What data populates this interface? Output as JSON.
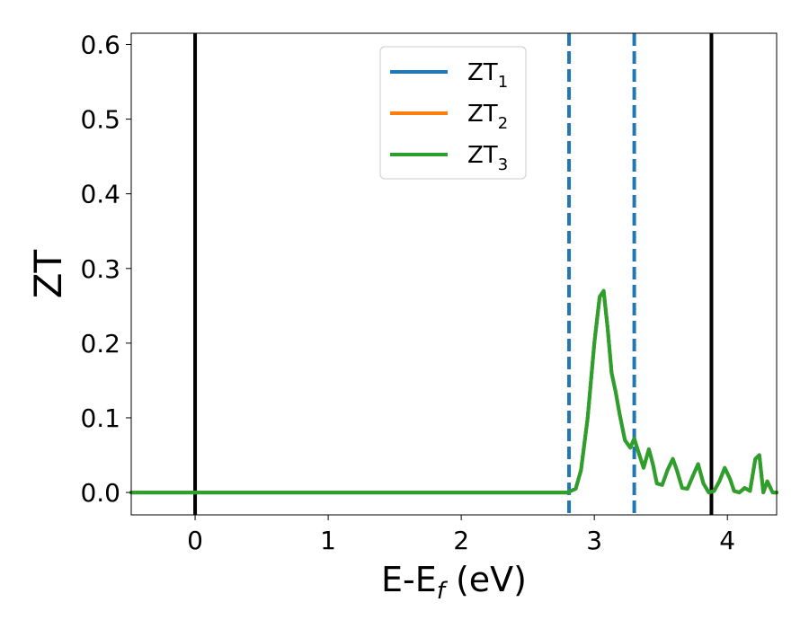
{
  "chart_data": {
    "type": "line",
    "title": "",
    "xlabel": {
      "base": "E-E",
      "sub": "f",
      "suffix": " (eV)"
    },
    "ylabel": "ZT",
    "xlim": [
      -0.48,
      4.37
    ],
    "ylim": [
      -0.03,
      0.615
    ],
    "x_ticks": [
      0,
      1,
      2,
      3,
      4
    ],
    "x_tick_labels": [
      "0",
      "1",
      "2",
      "3",
      "4"
    ],
    "y_ticks": [
      0.0,
      0.1,
      0.2,
      0.3,
      0.4,
      0.5,
      0.6
    ],
    "y_tick_labels": [
      "0.0",
      "0.1",
      "0.2",
      "0.3",
      "0.4",
      "0.5",
      "0.6"
    ],
    "grid": false,
    "legend_position": "top-center",
    "series": [
      {
        "name": {
          "base": "ZT",
          "sub": "1"
        },
        "color": "#1f77b4",
        "x": [
          -0.48,
          2.7,
          2.8,
          2.86,
          2.9,
          2.95,
          3.0,
          3.04,
          3.07,
          3.1,
          3.13,
          3.16,
          3.19,
          3.23,
          3.27,
          3.3,
          3.33,
          3.37,
          3.41,
          3.44,
          3.47,
          3.51,
          3.55,
          3.59,
          3.62,
          3.66,
          3.7,
          3.74,
          3.78,
          3.82,
          3.86,
          3.9,
          3.94,
          3.98,
          4.02,
          4.05,
          4.09,
          4.13,
          4.17,
          4.21,
          4.24,
          4.27,
          4.3,
          4.34,
          4.37
        ],
        "y": [
          0.0,
          0.0,
          0.0,
          0.005,
          0.03,
          0.1,
          0.2,
          0.262,
          0.27,
          0.22,
          0.16,
          0.135,
          0.105,
          0.07,
          0.06,
          0.072,
          0.055,
          0.033,
          0.058,
          0.038,
          0.012,
          0.01,
          0.03,
          0.045,
          0.03,
          0.006,
          0.005,
          0.022,
          0.038,
          0.012,
          0.0,
          0.002,
          0.015,
          0.033,
          0.018,
          0.002,
          0.0,
          0.006,
          0.002,
          0.045,
          0.05,
          0.0,
          0.015,
          0.0,
          0.0
        ]
      },
      {
        "name": {
          "base": "ZT",
          "sub": "2"
        },
        "color": "#ff7f0e",
        "x": [
          -0.48,
          2.7,
          2.8,
          2.86,
          2.9,
          2.95,
          3.0,
          3.04,
          3.07,
          3.1,
          3.13,
          3.16,
          3.19,
          3.23,
          3.27,
          3.3,
          3.33,
          3.37,
          3.41,
          3.44,
          3.47,
          3.51,
          3.55,
          3.59,
          3.62,
          3.66,
          3.7,
          3.74,
          3.78,
          3.82,
          3.86,
          3.9,
          3.94,
          3.98,
          4.02,
          4.05,
          4.09,
          4.13,
          4.17,
          4.21,
          4.24,
          4.27,
          4.3,
          4.34,
          4.37
        ],
        "y": [
          0.0,
          0.0,
          0.0,
          0.005,
          0.03,
          0.1,
          0.2,
          0.262,
          0.27,
          0.22,
          0.16,
          0.135,
          0.105,
          0.07,
          0.06,
          0.072,
          0.055,
          0.033,
          0.058,
          0.038,
          0.012,
          0.01,
          0.03,
          0.045,
          0.03,
          0.006,
          0.005,
          0.022,
          0.038,
          0.012,
          0.0,
          0.002,
          0.015,
          0.033,
          0.018,
          0.002,
          0.0,
          0.006,
          0.002,
          0.045,
          0.05,
          0.0,
          0.015,
          0.0,
          0.0
        ]
      },
      {
        "name": {
          "base": "ZT",
          "sub": "3"
        },
        "color": "#2ca02c",
        "x": [
          -0.48,
          2.7,
          2.8,
          2.86,
          2.9,
          2.95,
          3.0,
          3.04,
          3.07,
          3.1,
          3.13,
          3.16,
          3.19,
          3.23,
          3.27,
          3.3,
          3.33,
          3.37,
          3.41,
          3.44,
          3.47,
          3.51,
          3.55,
          3.59,
          3.62,
          3.66,
          3.7,
          3.74,
          3.78,
          3.82,
          3.86,
          3.9,
          3.94,
          3.98,
          4.02,
          4.05,
          4.09,
          4.13,
          4.17,
          4.21,
          4.24,
          4.27,
          4.3,
          4.34,
          4.37
        ],
        "y": [
          0.0,
          0.0,
          0.0,
          0.005,
          0.03,
          0.1,
          0.2,
          0.262,
          0.27,
          0.22,
          0.16,
          0.135,
          0.105,
          0.07,
          0.06,
          0.072,
          0.055,
          0.033,
          0.058,
          0.038,
          0.012,
          0.01,
          0.03,
          0.045,
          0.03,
          0.006,
          0.005,
          0.022,
          0.038,
          0.012,
          0.0,
          0.002,
          0.015,
          0.033,
          0.018,
          0.002,
          0.0,
          0.006,
          0.002,
          0.045,
          0.05,
          0.0,
          0.015,
          0.0,
          0.0
        ]
      }
    ],
    "reference_lines": [
      {
        "x": 0.0,
        "style": "solid",
        "color": "#000000"
      },
      {
        "x": 2.81,
        "style": "dashed",
        "color": "#1f77b4"
      },
      {
        "x": 3.3,
        "style": "dashed",
        "color": "#1f77b4"
      },
      {
        "x": 3.88,
        "style": "solid",
        "color": "#000000"
      }
    ]
  }
}
